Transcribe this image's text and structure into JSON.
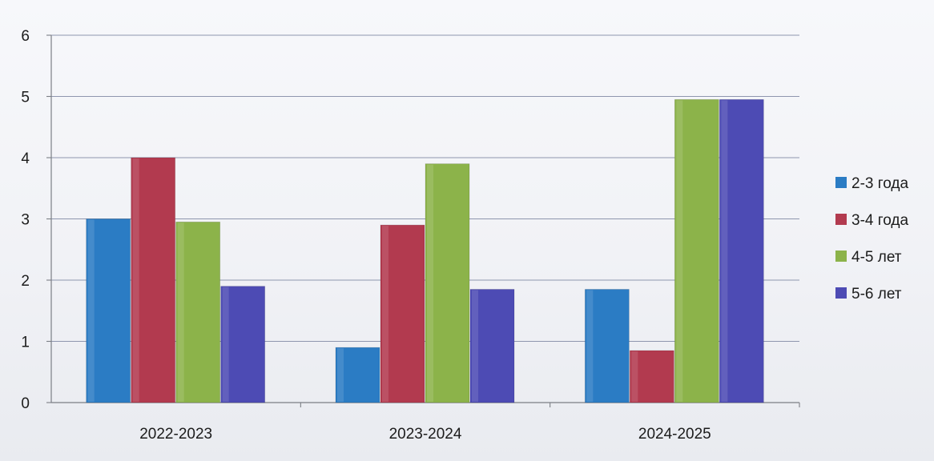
{
  "chart_data": {
    "type": "bar",
    "categories": [
      "2022-2023",
      "2023-2024",
      "2024-2025"
    ],
    "series": [
      {
        "name": "2-3 года",
        "color": "#2b7cc4",
        "values": [
          3,
          0.9,
          1.85
        ]
      },
      {
        "name": "3-4 года",
        "color": "#b23a4f",
        "values": [
          4,
          2.9,
          0.85
        ]
      },
      {
        "name": "4-5 лет",
        "color": "#8cb34a",
        "values": [
          2.95,
          3.9,
          4.95
        ]
      },
      {
        "name": "5-6 лет",
        "color": "#4d4bb4",
        "values": [
          1.9,
          1.85,
          4.95
        ]
      }
    ],
    "y_ticks": [
      "0",
      "1",
      "2",
      "3",
      "4",
      "5",
      "6"
    ],
    "ylim": [
      0,
      6
    ],
    "grid": true,
    "legend_position": "right"
  }
}
